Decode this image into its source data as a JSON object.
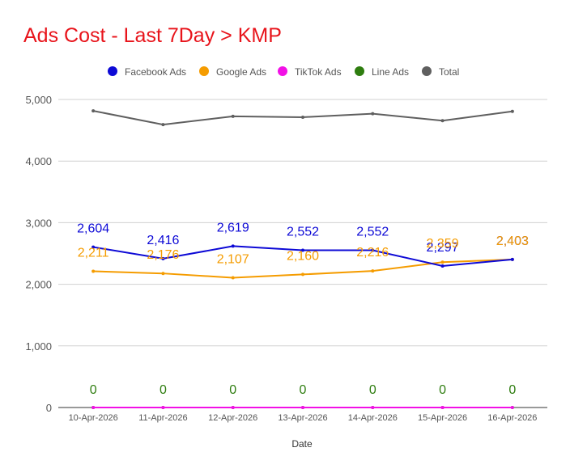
{
  "title": "Ads Cost - Last 7Day > KMP",
  "chart_data": {
    "type": "line",
    "title": "Ads Cost - Last 7Day > KMP",
    "xlabel": "Date",
    "ylabel": "",
    "ylim": [
      0,
      5000
    ],
    "yticks": [
      0,
      1000,
      2000,
      3000,
      4000,
      5000
    ],
    "ytick_labels": [
      "0",
      "1,000",
      "2,000",
      "3,000",
      "4,000",
      "5,000"
    ],
    "grid": true,
    "legend_position": "top",
    "categories": [
      "10-Apr-2026",
      "11-Apr-2026",
      "12-Apr-2026",
      "13-Apr-2026",
      "14-Apr-2026",
      "15-Apr-2026",
      "16-Apr-2026"
    ],
    "series": [
      {
        "name": "Facebook Ads",
        "color": "#0d09d6",
        "values": [
          2604,
          2416,
          2619,
          2552,
          2552,
          2297,
          2403
        ],
        "labels": [
          "2,604",
          "2,416",
          "2,619",
          "2,552",
          "2,552",
          "2,297",
          "2,403"
        ],
        "show_labels": true
      },
      {
        "name": "Google Ads",
        "color": "#f59c00",
        "values": [
          2211,
          2176,
          2107,
          2160,
          2216,
          2359,
          2403
        ],
        "labels": [
          "2,211",
          "2,176",
          "2,107",
          "2,160",
          "2,216",
          "2,359",
          "2,403"
        ],
        "show_labels": true
      },
      {
        "name": "TikTok Ads",
        "color": "#f211e6",
        "values": [
          0,
          0,
          0,
          0,
          0,
          0,
          0
        ],
        "labels": [],
        "show_labels": false
      },
      {
        "name": "Line Ads",
        "color": "#2e7d0f",
        "values": [
          0,
          0,
          0,
          0,
          0,
          0,
          0
        ],
        "labels": [
          "0",
          "0",
          "0",
          "0",
          "0",
          "0",
          "0"
        ],
        "show_labels": true
      },
      {
        "name": "Total",
        "color": "#5f5f5f",
        "values": [
          4815,
          4592,
          4726,
          4712,
          4768,
          4656,
          4806
        ],
        "labels": [],
        "show_labels": false
      }
    ]
  }
}
